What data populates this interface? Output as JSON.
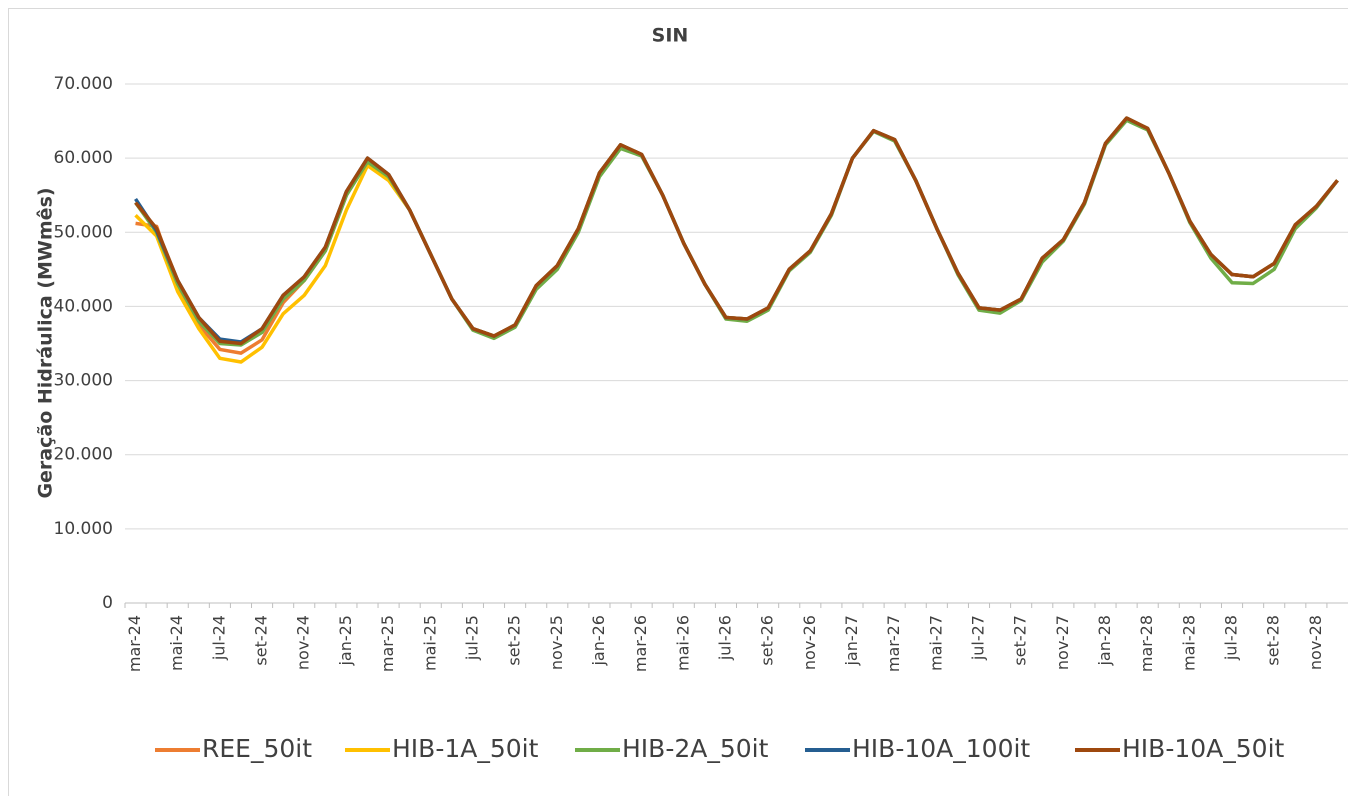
{
  "chart_data": {
    "type": "line",
    "title": "SIN",
    "y_label": "Geração Hidráulica (MWmês)",
    "categories": [
      "mar-24",
      null,
      "mai-24",
      null,
      "jul-24",
      null,
      "set-24",
      null,
      "nov-24",
      null,
      "jan-25",
      null,
      "mar-25",
      null,
      "mai-25",
      null,
      "jul-25",
      null,
      "set-25",
      null,
      "nov-25",
      null,
      "jan-26",
      null,
      "mar-26",
      null,
      "mai-26",
      null,
      "jul-26",
      null,
      "set-26",
      null,
      "nov-26",
      null,
      "jan-27",
      null,
      "mar-27",
      null,
      "mai-27",
      null,
      "jul-27",
      null,
      "set-27",
      null,
      "nov-27",
      null,
      "jan-28",
      null,
      "mar-28",
      null,
      "mai-28",
      null,
      "jul-28",
      null,
      "set-28",
      null,
      "nov-28",
      null
    ],
    "ylim": [
      0,
      70000
    ],
    "yticks": [
      0,
      {
        "value": 10000,
        "label": "10.000"
      },
      {
        "value": 20000,
        "label": "20.000"
      },
      {
        "value": 30000,
        "label": "30.000"
      },
      {
        "value": 40000,
        "label": "40.000"
      },
      {
        "value": 50000,
        "label": "50.000"
      },
      {
        "value": 60000,
        "label": "60.000"
      },
      {
        "value": 70000,
        "label": "70.000"
      }
    ],
    "grid": true,
    "legend": "bottom",
    "series": [
      {
        "name": "REE_50it",
        "color": "#ed7d31",
        "values": [
          51200,
          50800,
          42500,
          37500,
          34200,
          33700,
          35500,
          40500,
          43500,
          47500,
          55000,
          59800,
          57500,
          53000,
          47000,
          41000,
          37000,
          36000,
          37500,
          42800,
          45500,
          50500,
          58000,
          61800,
          60500,
          55000,
          48500,
          43000,
          38500,
          38300,
          39800,
          45000,
          47500,
          52500,
          60000,
          63700,
          62500,
          57000,
          50500,
          44500,
          39800,
          39500,
          41000,
          46500,
          49000,
          54000,
          62000,
          65400,
          64000,
          58000,
          51500,
          47000,
          44300,
          44000,
          45800,
          51000,
          53500,
          57000
        ]
      },
      {
        "name": "HIB-1A_50it",
        "color": "#ffc000",
        "values": [
          52300,
          49500,
          42000,
          37000,
          33000,
          32500,
          34500,
          39000,
          41500,
          45500,
          53000,
          59000,
          57000,
          53000,
          47000,
          41000,
          37000,
          36000,
          37500,
          42800,
          45500,
          50500,
          58000,
          61800,
          60500,
          55000,
          48500,
          43000,
          38500,
          38300,
          39800,
          45000,
          47500,
          52500,
          60000,
          63700,
          62500,
          57000,
          50500,
          44500,
          39800,
          39500,
          41000,
          46500,
          49000,
          54000,
          62000,
          65400,
          64000,
          58000,
          51500,
          47000,
          44300,
          44000,
          45800,
          51000,
          53500,
          57000
        ]
      },
      {
        "name": "HIB-2A_50it",
        "color": "#70ad47",
        "values": [
          54000,
          50000,
          43000,
          38000,
          35000,
          34800,
          36500,
          41000,
          43500,
          47500,
          55000,
          59500,
          57500,
          53000,
          47000,
          41000,
          36800,
          35700,
          37200,
          42300,
          45000,
          50000,
          57500,
          61300,
          60300,
          55000,
          48500,
          43000,
          38300,
          38000,
          39500,
          44800,
          47300,
          52300,
          60000,
          63600,
          62300,
          57000,
          50500,
          44300,
          39500,
          39100,
          40800,
          46000,
          48800,
          53800,
          61800,
          65100,
          63800,
          58000,
          51300,
          46500,
          43200,
          43100,
          45000,
          50500,
          53300,
          57000
        ]
      },
      {
        "name": "HIB-10A_100it",
        "color": "#255e91",
        "values": [
          54500,
          50200,
          43500,
          38500,
          35600,
          35200,
          37000,
          41500,
          44000,
          48000,
          55500,
          60000,
          57800,
          53000,
          47000,
          41000,
          37000,
          36000,
          37500,
          42800,
          45500,
          50500,
          58000,
          61800,
          60500,
          55000,
          48500,
          43000,
          38500,
          38300,
          39800,
          45000,
          47500,
          52500,
          60000,
          63700,
          62500,
          57000,
          50500,
          44500,
          39800,
          39500,
          41000,
          46500,
          49000,
          54000,
          62000,
          65400,
          64000,
          58000,
          51500,
          47000,
          44300,
          44000,
          45800,
          51000,
          53500,
          57000
        ]
      },
      {
        "name": "HIB-10A_50it",
        "color": "#9e480e",
        "values": [
          54000,
          50500,
          43500,
          38500,
          35300,
          35000,
          37000,
          41500,
          44000,
          48000,
          55500,
          60000,
          57800,
          53000,
          47000,
          41000,
          37000,
          36000,
          37500,
          42800,
          45500,
          50500,
          58000,
          61800,
          60500,
          55000,
          48500,
          43000,
          38500,
          38300,
          39800,
          45000,
          47500,
          52500,
          60000,
          63700,
          62500,
          57000,
          50500,
          44500,
          39800,
          39500,
          41000,
          46500,
          49000,
          54000,
          62000,
          65400,
          64000,
          58000,
          51500,
          47000,
          44300,
          44000,
          45800,
          51000,
          53500,
          57000
        ]
      }
    ]
  }
}
